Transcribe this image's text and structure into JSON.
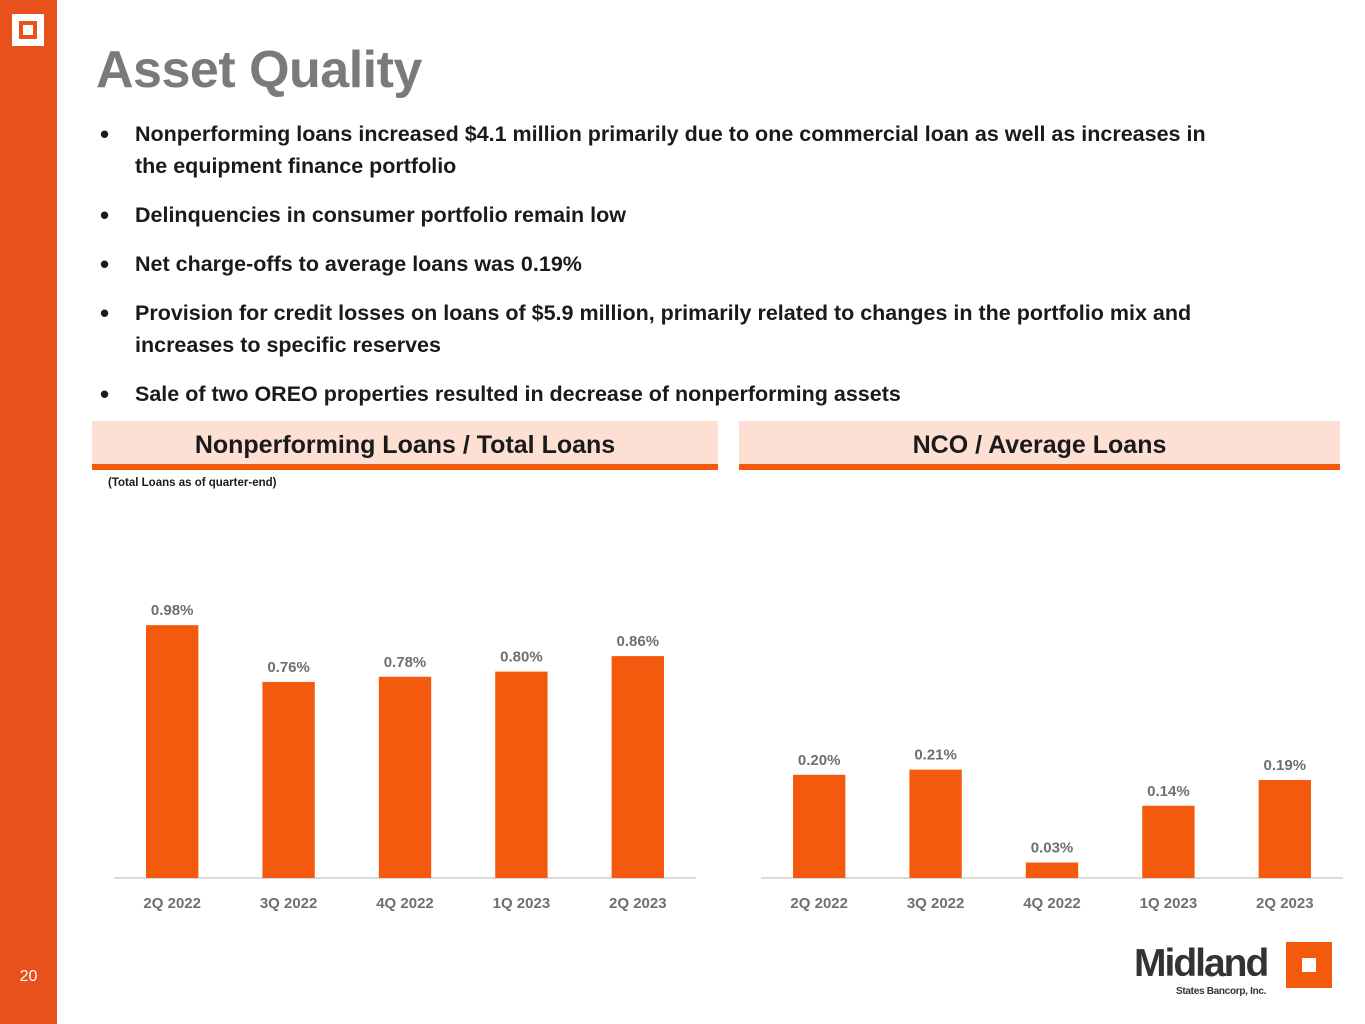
{
  "page": {
    "title": "Asset Quality",
    "page_number": "20"
  },
  "bullets": [
    "Nonperforming loans increased $4.1 million primarily due to one commercial loan as well as increases in the equipment finance portfolio",
    "Delinquencies in consumer portfolio remain low",
    "Net charge-offs to average loans was 0.19%",
    "Provision for credit losses on loans of $5.9 million, primarily related to changes in the portfolio mix and increases to specific reserves",
    "Sale of two OREO properties resulted in decrease of nonperforming assets"
  ],
  "brand": {
    "name": "Midland",
    "subtitle": "States Bancorp, Inc.",
    "accent_color": "#e8501c",
    "bar_color": "#f45a0e",
    "header_bg": "#fde0d3"
  },
  "chart_data": [
    {
      "type": "bar",
      "title": "Nonperforming Loans / Total Loans",
      "note": "(Total Loans as of quarter-end)",
      "categories": [
        "2Q 2022",
        "3Q 2022",
        "4Q 2022",
        "1Q 2023",
        "2Q 2023"
      ],
      "values": [
        0.98,
        0.76,
        0.78,
        0.8,
        0.86
      ],
      "labels": [
        "0.98%",
        "0.76%",
        "0.78%",
        "0.80%",
        "0.86%"
      ],
      "unit": "%",
      "ylim": [
        0,
        1.0
      ],
      "grid": false
    },
    {
      "type": "bar",
      "title": "NCO / Average Loans",
      "categories": [
        "2Q 2022",
        "3Q 2022",
        "4Q 2022",
        "1Q 2023",
        "2Q 2023"
      ],
      "values": [
        0.2,
        0.21,
        0.03,
        0.14,
        0.19
      ],
      "labels": [
        "0.20%",
        "0.21%",
        "0.03%",
        "0.14%",
        "0.19%"
      ],
      "unit": "%",
      "ylim": [
        0,
        0.5
      ],
      "grid": false
    }
  ]
}
